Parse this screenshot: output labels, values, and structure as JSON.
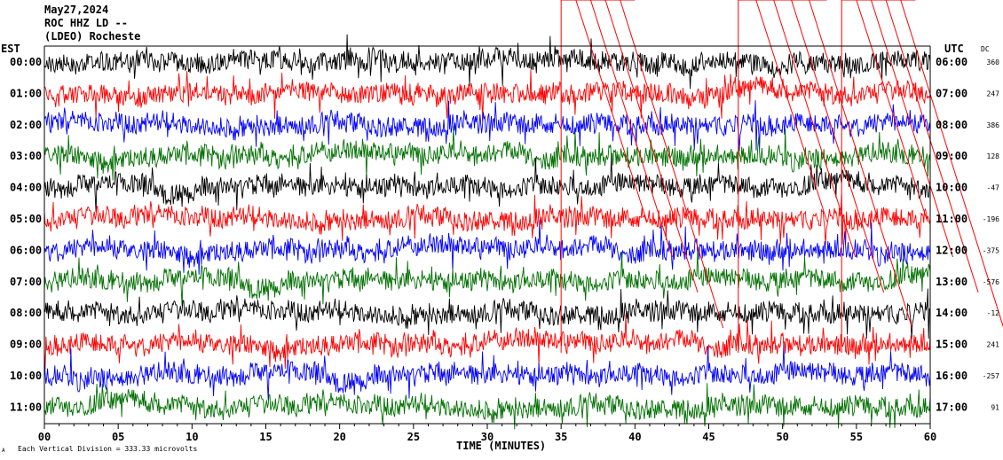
{
  "header": {
    "date": "May27,2024",
    "station": "ROC HHZ LD --",
    "network": "(LDEO) Rocheste",
    "left_axis_label": "EST",
    "right_axis_label": "UTC",
    "dc_label": "DC"
  },
  "footer": {
    "xlabel": "TIME (MINUTES)",
    "scale_note": "Each Vertical Division = 333.33 microvolts",
    "corner_mark": "A"
  },
  "colors": {
    "trace_cycle": [
      "#000000",
      "#ff0000",
      "#0000ff",
      "#007000"
    ],
    "event_marker": "#ff0000",
    "background": "#ffffff"
  },
  "chart_data": {
    "type": "line",
    "title": "May27,2024 ROC HHZ LD -- (LDEO) Rocheste",
    "xlabel": "TIME (MINUTES)",
    "ylabel": "",
    "xlim": [
      0,
      60
    ],
    "x_ticks": [
      "00",
      "05",
      "10",
      "15",
      "20",
      "25",
      "30",
      "35",
      "40",
      "45",
      "50",
      "55",
      "60"
    ],
    "grid": false,
    "trace_color_order": [
      "black",
      "red",
      "blue",
      "green"
    ],
    "hours": [
      {
        "est": "00:00",
        "utc": "06:00",
        "dc": "360"
      },
      {
        "est": "01:00",
        "utc": "07:00",
        "dc": "247"
      },
      {
        "est": "02:00",
        "utc": "08:00",
        "dc": "386"
      },
      {
        "est": "03:00",
        "utc": "09:00",
        "dc": "128"
      },
      {
        "est": "04:00",
        "utc": "10:00",
        "dc": "-47"
      },
      {
        "est": "05:00",
        "utc": "11:00",
        "dc": "-196"
      },
      {
        "est": "06:00",
        "utc": "12:00",
        "dc": "-375"
      },
      {
        "est": "07:00",
        "utc": "13:00",
        "dc": "-576"
      },
      {
        "est": "08:00",
        "utc": "14:00",
        "dc": "-12"
      },
      {
        "est": "09:00",
        "utc": "15:00",
        "dc": "241"
      },
      {
        "est": "10:00",
        "utc": "16:00",
        "dc": "-257"
      },
      {
        "est": "11:00",
        "utc": "17:00",
        "dc": "91"
      }
    ],
    "event_markers_minutes": [
      [
        35,
        40
      ],
      [
        47,
        53
      ],
      [
        54,
        59
      ]
    ]
  }
}
